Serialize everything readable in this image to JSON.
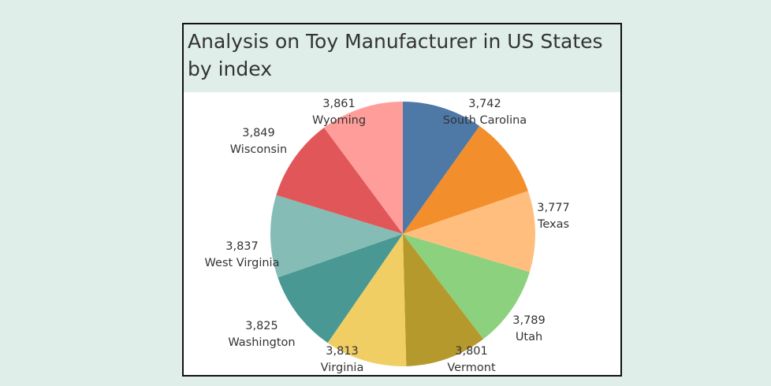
{
  "chart_data": {
    "type": "pie",
    "title": "Analysis on Toy Manufacturer in US States by index",
    "slices": [
      {
        "label": "South Carolina",
        "value": 3742,
        "display": "3,742",
        "color": "#4e79a7"
      },
      {
        "label": "",
        "value": 3765,
        "display": "",
        "color": "#f28e2b"
      },
      {
        "label": "Texas",
        "value": 3777,
        "display": "3,777",
        "color": "#ffbe7d"
      },
      {
        "label": "Utah",
        "value": 3789,
        "display": "3,789",
        "color": "#8cd17d"
      },
      {
        "label": "Vermont",
        "value": 3801,
        "display": "3,801",
        "color": "#b6992d"
      },
      {
        "label": "Virginia",
        "value": 3813,
        "display": "3,813",
        "color": "#f1ce63"
      },
      {
        "label": "Washington",
        "value": 3825,
        "display": "3,825",
        "color": "#499894"
      },
      {
        "label": "West Virginia",
        "value": 3837,
        "display": "3,837",
        "color": "#86bcb6"
      },
      {
        "label": "Wisconsin",
        "value": 3849,
        "display": "3,849",
        "color": "#e15759"
      },
      {
        "label": "Wyoming",
        "value": 3861,
        "display": "3,861",
        "color": "#ff9d9a"
      }
    ]
  }
}
